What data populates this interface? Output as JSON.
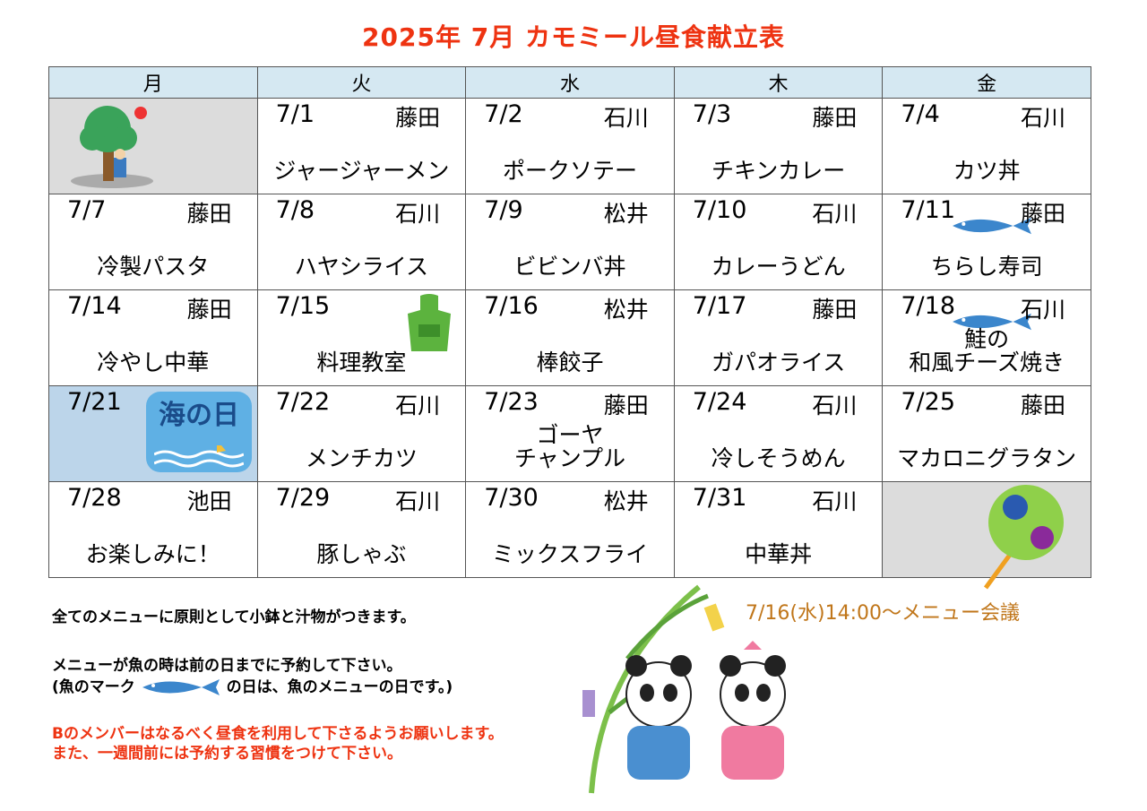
{
  "title": "2025年  7月     カモミール昼食献立表",
  "weekdays": [
    "月",
    "火",
    "水",
    "木",
    "金"
  ],
  "weeks": [
    [
      {
        "date": "",
        "person": "",
        "menu": "",
        "icon": "tree-sun"
      },
      {
        "date": "7/1",
        "person": "藤田",
        "menu": "ジャージャーメン"
      },
      {
        "date": "7/2",
        "person": "石川",
        "menu": "ポークソテー"
      },
      {
        "date": "7/3",
        "person": "藤田",
        "menu": "チキンカレー"
      },
      {
        "date": "7/4",
        "person": "石川",
        "menu": "カツ丼"
      }
    ],
    [
      {
        "date": "7/7",
        "person": "藤田",
        "menu": "冷製パスタ"
      },
      {
        "date": "7/8",
        "person": "石川",
        "menu": "ハヤシライス"
      },
      {
        "date": "7/9",
        "person": "松井",
        "menu": "ビビンバ丼"
      },
      {
        "date": "7/10",
        "person": "石川",
        "menu": "カレーうどん"
      },
      {
        "date": "7/11",
        "person": "藤田",
        "menu": "ちらし寿司",
        "icon": "fish"
      }
    ],
    [
      {
        "date": "7/14",
        "person": "藤田",
        "menu": "冷やし中華"
      },
      {
        "date": "7/15",
        "person": "",
        "menu": "料理教室",
        "icon": "apron"
      },
      {
        "date": "7/16",
        "person": "松井",
        "menu": "棒餃子"
      },
      {
        "date": "7/17",
        "person": "藤田",
        "menu": "ガパオライス"
      },
      {
        "date": "7/18",
        "person": "石川",
        "menu": "鮭の\n和風チーズ焼き",
        "icon": "fish"
      }
    ],
    [
      {
        "date": "7/21",
        "person": "",
        "menu": "",
        "icon": "umi-no-hi",
        "badge": "海の日"
      },
      {
        "date": "7/22",
        "person": "石川",
        "menu": "メンチカツ"
      },
      {
        "date": "7/23",
        "person": "藤田",
        "menu": "ゴーヤ\nチャンプル"
      },
      {
        "date": "7/24",
        "person": "石川",
        "menu": "冷しそうめん"
      },
      {
        "date": "7/25",
        "person": "藤田",
        "menu": "マカロニグラタン"
      }
    ],
    [
      {
        "date": "7/28",
        "person": "池田",
        "menu": "お楽しみに！"
      },
      {
        "date": "7/29",
        "person": "石川",
        "menu": "豚しゃぶ"
      },
      {
        "date": "7/30",
        "person": "松井",
        "menu": "ミックスフライ"
      },
      {
        "date": "7/31",
        "person": "石川",
        "menu": "中華丼"
      },
      {
        "date": "",
        "person": "",
        "menu": "",
        "icon": "uchiwa"
      }
    ]
  ],
  "notes": {
    "line1": "全てのメニューに原則として小鉢と汁物がつきます。",
    "line2": "メニューが魚の時は前の日までに予約して下さい。",
    "line3a": "(魚のマーク",
    "line3b": "の日は、魚のメニューの日です。)",
    "red1": "Bのメンバーはなるべく昼食を利用して下さるようお願いします。",
    "red2": "また、一週間前には予約する習慣をつけて下さい。"
  },
  "meeting": "7/16(水)14:00～メニュー会議",
  "colors": {
    "title": "#ee3311",
    "header": "#d5e8f2",
    "fish": "#3b86cc",
    "meeting": "#c0761a"
  }
}
